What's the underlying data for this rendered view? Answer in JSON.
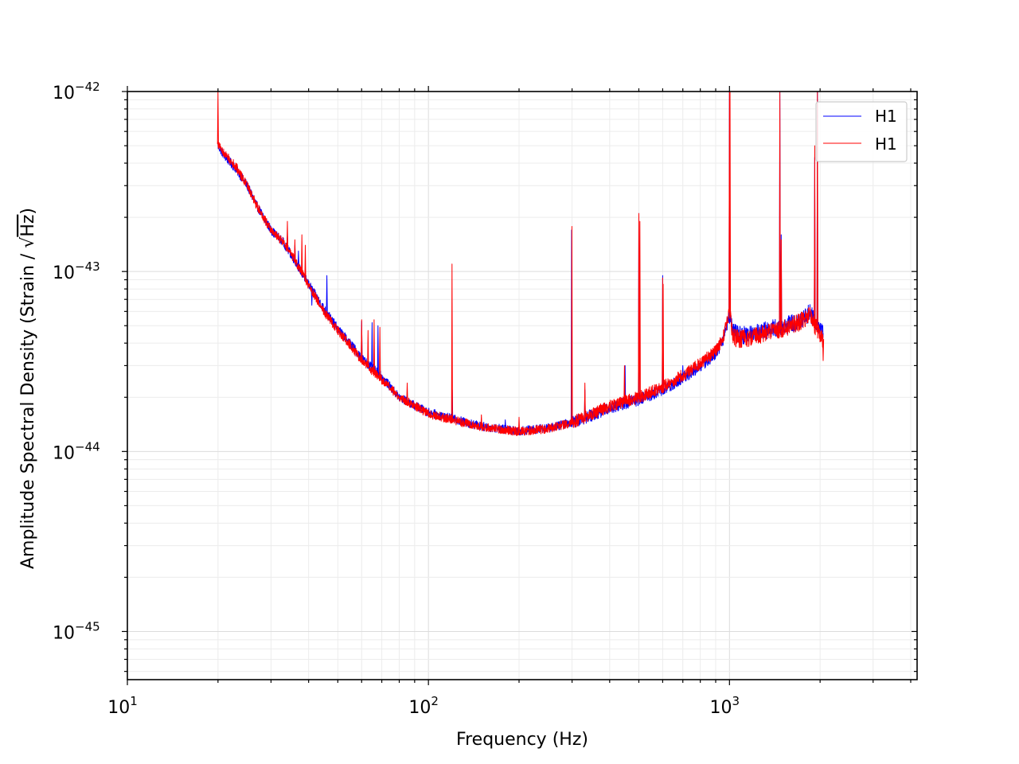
{
  "chart_data": {
    "type": "line",
    "title": "",
    "xlabel": "Frequency (Hz)",
    "ylabel_prefix": "Amplitude Spectral Density (Strain / ",
    "ylabel_root": "√",
    "ylabel_unit": "Hz",
    "ylabel_suffix": ")",
    "xscale": "log",
    "yscale": "log",
    "xlim": [
      10,
      4200
    ],
    "ylim": [
      5.4e-46,
      1e-42
    ],
    "x_ticks": [
      {
        "base": "10",
        "exp": "1",
        "value": 10
      },
      {
        "base": "10",
        "exp": "2",
        "value": 100
      },
      {
        "base": "10",
        "exp": "3",
        "value": 1000
      }
    ],
    "y_ticks": [
      {
        "base": "10",
        "exp": "−42",
        "value": 1e-42
      },
      {
        "base": "10",
        "exp": "−43",
        "value": 1e-43
      },
      {
        "base": "10",
        "exp": "−44",
        "value": 1e-44
      },
      {
        "base": "10",
        "exp": "−45",
        "value": 1e-45
      }
    ],
    "grid": true,
    "legend_position": "top-right",
    "series": [
      {
        "name": "H1",
        "color": "#0000ff",
        "baseline": [
          [
            20,
            5e-43
          ],
          [
            21,
            4.4e-43
          ],
          [
            23,
            3.7e-43
          ],
          [
            25,
            3e-43
          ],
          [
            27,
            2.3e-43
          ],
          [
            30,
            1.7e-43
          ],
          [
            33,
            1.45e-43
          ],
          [
            36,
            1.15e-43
          ],
          [
            40,
            8.5e-44
          ],
          [
            45,
            6.2e-44
          ],
          [
            50,
            4.8e-44
          ],
          [
            55,
            4e-44
          ],
          [
            60,
            3.3e-44
          ],
          [
            70,
            2.6e-44
          ],
          [
            80,
            2e-44
          ],
          [
            90,
            1.8e-44
          ],
          [
            100,
            1.65e-44
          ],
          [
            120,
            1.52e-44
          ],
          [
            150,
            1.38e-44
          ],
          [
            200,
            1.3e-44
          ],
          [
            250,
            1.35e-44
          ],
          [
            300,
            1.45e-44
          ],
          [
            350,
            1.6e-44
          ],
          [
            400,
            1.75e-44
          ],
          [
            500,
            1.95e-44
          ],
          [
            600,
            2.2e-44
          ],
          [
            700,
            2.55e-44
          ],
          [
            800,
            3e-44
          ],
          [
            900,
            3.5e-44
          ],
          [
            950,
            4.1e-44
          ],
          [
            1000,
            5.8e-44
          ],
          [
            1030,
            4.6e-44
          ],
          [
            1100,
            4.4e-44
          ],
          [
            1300,
            4.7e-44
          ],
          [
            1500,
            4.95e-44
          ],
          [
            1700,
            5.3e-44
          ],
          [
            1850,
            5.9e-44
          ],
          [
            1950,
            5.1e-44
          ],
          [
            2048,
            4.6e-44
          ]
        ],
        "peaks": [
          [
            34,
            1.6e-43
          ],
          [
            36,
            1.4e-43
          ],
          [
            37,
            1.3e-43
          ],
          [
            41,
            6.5e-44
          ],
          [
            46,
            9.5e-44
          ],
          [
            60,
            5.3e-44
          ],
          [
            65,
            5.2e-44
          ],
          [
            68,
            5e-44
          ],
          [
            120,
            2.2e-44
          ],
          [
            180,
            1.5e-44
          ],
          [
            299,
            1.7e-43
          ],
          [
            331,
            2.2e-44
          ],
          [
            450,
            3e-44
          ],
          [
            500,
            2.1e-43
          ],
          [
            600,
            9.5e-44
          ],
          [
            700,
            3e-44
          ],
          [
            1000,
            1e-42
          ],
          [
            1470,
            1e-42
          ],
          [
            1485,
            1.6e-43
          ],
          [
            1920,
            4.3e-43
          ],
          [
            1960,
            1e-42
          ]
        ],
        "width": 1
      },
      {
        "name": "H1",
        "color": "#ff0000",
        "baseline": [
          [
            20,
            5.1e-43
          ],
          [
            21,
            4.5e-43
          ],
          [
            23,
            3.8e-43
          ],
          [
            25,
            3e-43
          ],
          [
            27,
            2.3e-43
          ],
          [
            30,
            1.7e-43
          ],
          [
            33,
            1.45e-43
          ],
          [
            36,
            1.15e-43
          ],
          [
            40,
            8.4e-44
          ],
          [
            45,
            6e-44
          ],
          [
            50,
            4.7e-44
          ],
          [
            55,
            3.9e-44
          ],
          [
            60,
            3.2e-44
          ],
          [
            70,
            2.5e-44
          ],
          [
            80,
            2e-44
          ],
          [
            90,
            1.8e-44
          ],
          [
            100,
            1.62e-44
          ],
          [
            120,
            1.5e-44
          ],
          [
            150,
            1.37e-44
          ],
          [
            200,
            1.29e-44
          ],
          [
            250,
            1.34e-44
          ],
          [
            300,
            1.45e-44
          ],
          [
            350,
            1.62e-44
          ],
          [
            400,
            1.78e-44
          ],
          [
            500,
            2e-44
          ],
          [
            600,
            2.28e-44
          ],
          [
            700,
            2.65e-44
          ],
          [
            800,
            3.1e-44
          ],
          [
            900,
            3.6e-44
          ],
          [
            950,
            4.2e-44
          ],
          [
            1000,
            6e-44
          ],
          [
            1030,
            4.3e-44
          ],
          [
            1100,
            4.2e-44
          ],
          [
            1300,
            4.5e-44
          ],
          [
            1500,
            4.8e-44
          ],
          [
            1700,
            5.2e-44
          ],
          [
            1850,
            5.7e-44
          ],
          [
            1950,
            4.8e-44
          ],
          [
            2048,
            4.2e-44
          ]
        ],
        "peaks": [
          [
            20,
            1e-42
          ],
          [
            34,
            1.9e-43
          ],
          [
            36,
            1.5e-43
          ],
          [
            38,
            1.6e-43
          ],
          [
            39,
            1.4e-43
          ],
          [
            60,
            5.4e-44
          ],
          [
            63,
            4.7e-44
          ],
          [
            66,
            5.4e-44
          ],
          [
            69,
            4.9e-44
          ],
          [
            85,
            2.4e-44
          ],
          [
            119.8,
            1.1e-43
          ],
          [
            150,
            1.6e-44
          ],
          [
            200,
            1.55e-44
          ],
          [
            299.6,
            1.78e-43
          ],
          [
            331,
            2.4e-44
          ],
          [
            448,
            3e-44
          ],
          [
            500,
            2.1e-43
          ],
          [
            504,
            1.9e-43
          ],
          [
            600,
            9.2e-44
          ],
          [
            602,
            8.5e-44
          ],
          [
            1000,
            1e-42
          ],
          [
            1004,
            1e-42
          ],
          [
            1470,
            1e-42
          ],
          [
            1486,
            1.5e-43
          ],
          [
            1920,
            5e-43
          ],
          [
            1960,
            1e-42
          ],
          [
            2048,
            3.2e-44
          ]
        ],
        "width": 1
      }
    ]
  }
}
